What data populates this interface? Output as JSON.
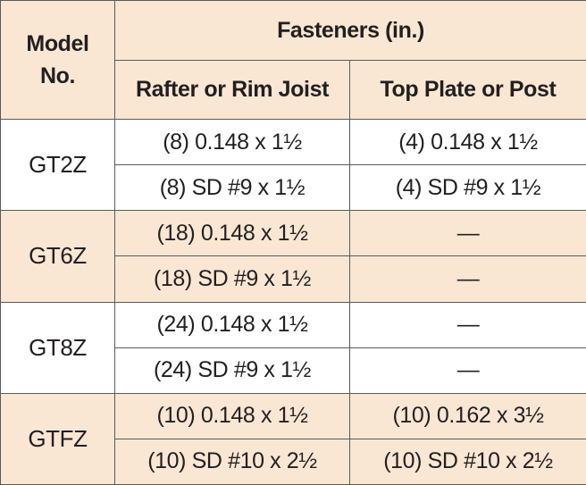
{
  "header": {
    "model": "Model\nNo.",
    "fasteners": "Fasteners (in.)",
    "rafter": "Rafter or Rim Joist",
    "top_plate": "Top Plate or Post"
  },
  "rows": [
    {
      "model": "GT2Z",
      "band": false,
      "lines": [
        {
          "rafter": "(8) 0.148 x 1½",
          "top": "(4) 0.148 x 1½"
        },
        {
          "rafter": "(8) SD #9 x 1½",
          "top": "(4) SD #9 x 1½"
        }
      ]
    },
    {
      "model": "GT6Z",
      "band": true,
      "lines": [
        {
          "rafter": "(18) 0.148 x 1½",
          "top": "—"
        },
        {
          "rafter": "(18) SD #9 x 1½",
          "top": "—"
        }
      ]
    },
    {
      "model": "GT8Z",
      "band": false,
      "lines": [
        {
          "rafter": "(24) 0.148 x 1½",
          "top": "—"
        },
        {
          "rafter": "(24) SD #9 x 1½",
          "top": "—"
        }
      ]
    },
    {
      "model": "GTFZ",
      "band": true,
      "lines": [
        {
          "rafter": "(10) 0.148 x 1½",
          "top": "(10) 0.162 x 3½"
        },
        {
          "rafter": "(10) SD #10 x 2½",
          "top": "(10) SD #10 x 2½"
        }
      ]
    }
  ]
}
